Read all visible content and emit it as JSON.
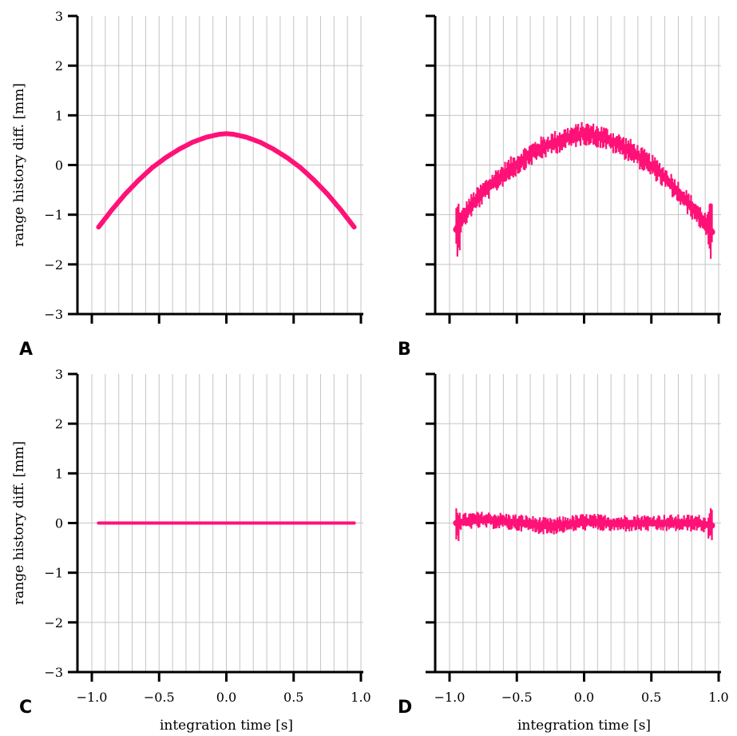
{
  "chart_data": [
    {
      "panel": "A",
      "type": "line",
      "xlabel": "",
      "ylabel": "range history diff. [mm]",
      "xlim": [
        -1.0,
        1.0
      ],
      "ylim": [
        -3,
        3
      ],
      "xticks": [
        -1.0,
        -0.5,
        0.0,
        0.5,
        1.0
      ],
      "xtick_labels_shown": false,
      "yticks": [
        -3,
        -2,
        -1,
        0,
        1,
        2,
        3
      ],
      "ytick_labels_shown": true,
      "grid": true,
      "series": [
        {
          "color": "#ff1177",
          "x": [
            -0.95,
            -0.85,
            -0.75,
            -0.65,
            -0.55,
            -0.45,
            -0.35,
            -0.25,
            -0.15,
            -0.05,
            0.0,
            0.05,
            0.15,
            0.25,
            0.35,
            0.45,
            0.55,
            0.65,
            0.75,
            0.85,
            0.95
          ],
          "y": [
            -1.25,
            -0.9,
            -0.58,
            -0.3,
            -0.05,
            0.15,
            0.32,
            0.46,
            0.56,
            0.62,
            0.63,
            0.62,
            0.56,
            0.46,
            0.32,
            0.15,
            -0.05,
            -0.3,
            -0.58,
            -0.9,
            -1.25
          ],
          "noise": 0
        }
      ]
    },
    {
      "panel": "B",
      "type": "line",
      "xlabel": "",
      "ylabel": "",
      "xlim": [
        -1.0,
        1.0
      ],
      "ylim": [
        -3,
        3
      ],
      "xticks": [
        -1.0,
        -0.5,
        0.0,
        0.5,
        1.0
      ],
      "xtick_labels_shown": false,
      "yticks": [
        -3,
        -2,
        -1,
        0,
        1,
        2,
        3
      ],
      "ytick_labels_shown": false,
      "grid": true,
      "series": [
        {
          "color": "#ff1177",
          "x": [
            -0.95,
            -0.85,
            -0.75,
            -0.65,
            -0.55,
            -0.45,
            -0.35,
            -0.25,
            -0.15,
            -0.05,
            0.0,
            0.05,
            0.15,
            0.25,
            0.35,
            0.45,
            0.55,
            0.65,
            0.75,
            0.85,
            0.95
          ],
          "y": [
            -1.3,
            -0.85,
            -0.55,
            -0.3,
            -0.08,
            0.12,
            0.3,
            0.42,
            0.52,
            0.6,
            0.64,
            0.62,
            0.55,
            0.42,
            0.28,
            0.08,
            -0.12,
            -0.4,
            -0.7,
            -1.0,
            -1.35
          ],
          "noise": 0.18
        }
      ]
    },
    {
      "panel": "C",
      "type": "line",
      "xlabel": "integration time [s]",
      "ylabel": "range history diff. [mm]",
      "xlim": [
        -1.0,
        1.0
      ],
      "ylim": [
        -3,
        3
      ],
      "xticks": [
        -1.0,
        -0.5,
        0.0,
        0.5,
        1.0
      ],
      "xtick_labels": [
        "−1.0",
        "−0.5",
        "0.0",
        "0.5",
        "1.0"
      ],
      "xtick_labels_shown": true,
      "yticks": [
        -3,
        -2,
        -1,
        0,
        1,
        2,
        3
      ],
      "ytick_labels_shown": true,
      "grid": true,
      "series": [
        {
          "color": "#ff1177",
          "x": [
            -0.95,
            0.95
          ],
          "y": [
            0.0,
            0.0
          ],
          "noise": 0
        }
      ]
    },
    {
      "panel": "D",
      "type": "line",
      "xlabel": "integration time [s]",
      "ylabel": "",
      "xlim": [
        -1.0,
        1.0
      ],
      "ylim": [
        -3,
        3
      ],
      "xticks": [
        -1.0,
        -0.5,
        0.0,
        0.5,
        1.0
      ],
      "xtick_labels": [
        "−1.0",
        "−0.5",
        "0.0",
        "0.5",
        "1.0"
      ],
      "xtick_labels_shown": true,
      "yticks": [
        -3,
        -2,
        -1,
        0,
        1,
        2,
        3
      ],
      "ytick_labels_shown": false,
      "grid": true,
      "series": [
        {
          "color": "#ff1177",
          "x": [
            -0.95,
            -0.85,
            -0.75,
            -0.65,
            -0.55,
            -0.45,
            -0.35,
            -0.25,
            -0.15,
            -0.05,
            0.0,
            0.05,
            0.15,
            0.25,
            0.35,
            0.45,
            0.55,
            0.65,
            0.75,
            0.85,
            0.95
          ],
          "y": [
            0.0,
            0.05,
            0.06,
            0.05,
            0.02,
            0.0,
            -0.04,
            -0.07,
            -0.03,
            0.0,
            0.02,
            0.02,
            0.0,
            -0.01,
            0.0,
            0.0,
            0.0,
            0.0,
            0.0,
            0.0,
            -0.05
          ],
          "noise": 0.13
        }
      ]
    }
  ],
  "ytick_labels": [
    "−3",
    "−2",
    "−1",
    "0",
    "1",
    "2",
    "3"
  ]
}
